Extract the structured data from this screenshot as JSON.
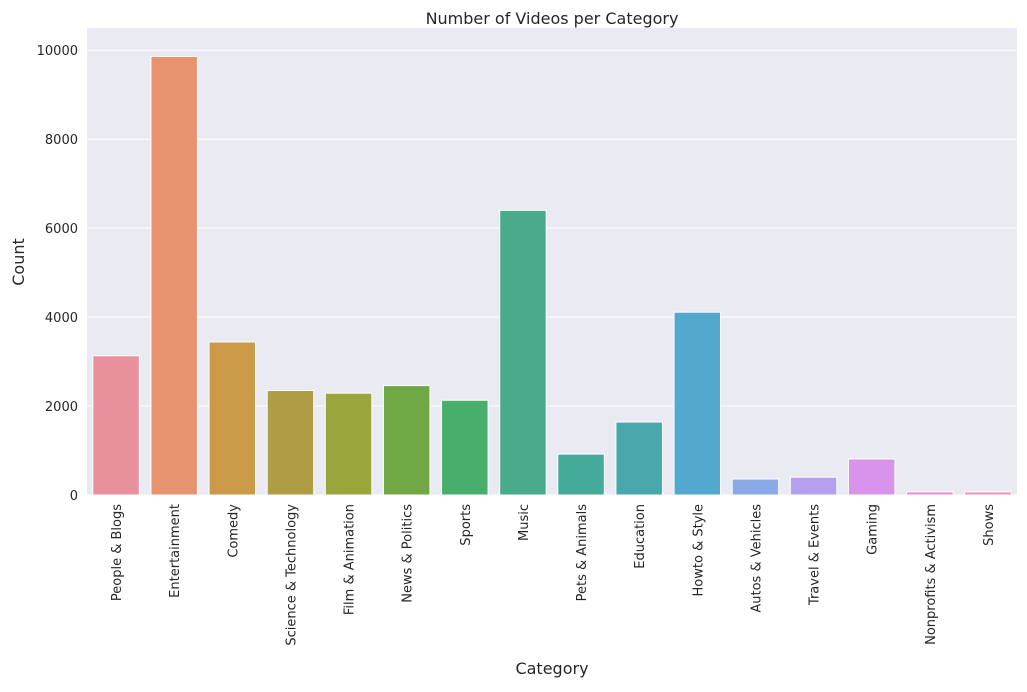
{
  "chart_data": {
    "type": "bar",
    "title": "Number of Videos per Category",
    "xlabel": "Category",
    "ylabel": "Count",
    "ylim": [
      0,
      10500
    ],
    "yticks": [
      0,
      2000,
      4000,
      6000,
      8000,
      10000
    ],
    "grid": true,
    "background": "#eaeaf2",
    "categories": [
      "People & Blogs",
      "Entertainment",
      "Comedy",
      "Science & Technology",
      "Film & Animation",
      "News & Politics",
      "Sports",
      "Music",
      "Pets & Animals",
      "Education",
      "Howto & Style",
      "Autos & Vehicles",
      "Travel & Events",
      "Gaming",
      "Nonprofits & Activism",
      "Shows"
    ],
    "values": [
      3130,
      9860,
      3440,
      2350,
      2290,
      2460,
      2130,
      6400,
      920,
      1640,
      4110,
      360,
      400,
      810,
      70,
      70
    ],
    "colors": [
      "#e8909c",
      "#e8936f",
      "#cb9a48",
      "#ae9d42",
      "#9aa53c",
      "#6fa845",
      "#47ae6b",
      "#4aab8c",
      "#44aa9a",
      "#48a8ac",
      "#52a9cd",
      "#89aae6",
      "#b4a0ef",
      "#d894ea",
      "#e88dd1",
      "#ec96b7"
    ]
  }
}
